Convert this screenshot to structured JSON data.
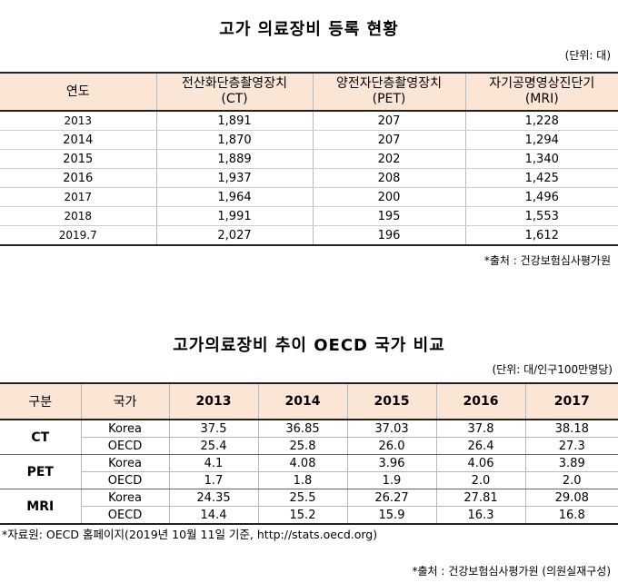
{
  "table1": {
    "title": "고가 의료장비 등록 현황",
    "unit": "(단위: 대)",
    "headers": [
      {
        "line1": "연도",
        "line2": ""
      },
      {
        "line1": "전산화단층촬영장치",
        "line2": "(CT)"
      },
      {
        "line1": "양전자단층촬영장치",
        "line2": "(PET)"
      },
      {
        "line1": "자기공명영상진단기",
        "line2": "(MRI)"
      }
    ],
    "rows": [
      [
        "2013",
        "1,891",
        "207",
        "1,228"
      ],
      [
        "2014",
        "1,870",
        "207",
        "1,294"
      ],
      [
        "2015",
        "1,889",
        "202",
        "1,340"
      ],
      [
        "2016",
        "1,937",
        "208",
        "1,425"
      ],
      [
        "2017",
        "1,964",
        "200",
        "1,496"
      ],
      [
        "2018",
        "1,991",
        "195",
        "1,553"
      ],
      [
        "2019.7",
        "2,027",
        "196",
        "1,612"
      ]
    ],
    "source": "*출처 : 건강보험심사평가원"
  },
  "table2": {
    "title": "고가의료장비 추이 OECD 국가 비교",
    "unit": "(단위: 대/인구100만명당)",
    "headers": [
      "구분",
      "국가",
      "2013",
      "2014",
      "2015",
      "2016",
      "2017"
    ],
    "groups": [
      {
        "label": "CT",
        "rows": [
          [
            "Korea",
            "37.5",
            "36.85",
            "37.03",
            "37.8",
            "38.18"
          ],
          [
            "OECD",
            "25.4",
            "25.8",
            "26.0",
            "26.4",
            "27.3"
          ]
        ]
      },
      {
        "label": "PET",
        "rows": [
          [
            "Korea",
            "4.1",
            "4.08",
            "3.96",
            "4.06",
            "3.89"
          ],
          [
            "OECD",
            "1.7",
            "1.8",
            "1.9",
            "2.0",
            "2.0"
          ]
        ]
      },
      {
        "label": "MRI",
        "rows": [
          [
            "Korea",
            "24.35",
            "25.5",
            "26.27",
            "27.81",
            "29.08"
          ],
          [
            "OECD",
            "14.4",
            "15.2",
            "15.9",
            "16.3",
            "16.8"
          ]
        ]
      }
    ],
    "note": "*자료원: OECD 홈페이지(2019년 10월 11일 기준, http://stats.oecd.org)",
    "source": "*출처 : 건강보험심사평가원 (의원실재구성)"
  }
}
